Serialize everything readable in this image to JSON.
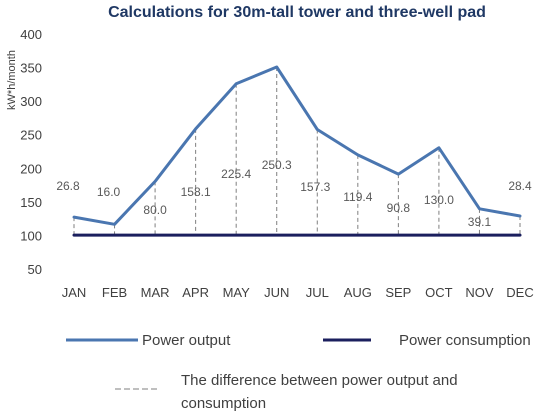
{
  "chart_data": {
    "type": "line",
    "title": "Calculations  for 30m-tall tower and three-well pad",
    "ylabel": "kW*h/month",
    "xlabel": "",
    "categories": [
      "JAN",
      "FEB",
      "MAR",
      "APR",
      "MAY",
      "JUN",
      "JUL",
      "AUG",
      "SEP",
      "OCT",
      "NOV",
      "DEC"
    ],
    "ylim": [
      50,
      400
    ],
    "yticks": [
      "50",
      "100",
      "150",
      "200",
      "250",
      "300",
      "350",
      "400"
    ],
    "grid": false,
    "legend_position": "bottom",
    "series": [
      {
        "name": "Power output",
        "color": "#4a76b0",
        "values": [
          128.8,
          118.0,
          182.0,
          260.1,
          327.4,
          352.3,
          259.3,
          221.4,
          192.8,
          232.0,
          141.1,
          130.4
        ]
      },
      {
        "name": "Power consumption",
        "color": "#1b1f5e",
        "values": [
          102,
          102,
          102,
          102,
          102,
          102,
          102,
          102,
          102,
          102,
          102,
          102
        ]
      }
    ],
    "difference_labels": [
      "26.8",
      "16.0",
      "80.0",
      "158.1",
      "225.4",
      "250.3",
      "157.3",
      "119.4",
      "90.8",
      "130.0",
      "39.1",
      "28.4"
    ],
    "difference_legend": "The difference between power output and consumption",
    "difference_legend_line2": "consumption",
    "difference_legend_line1": "The difference between power output and"
  }
}
